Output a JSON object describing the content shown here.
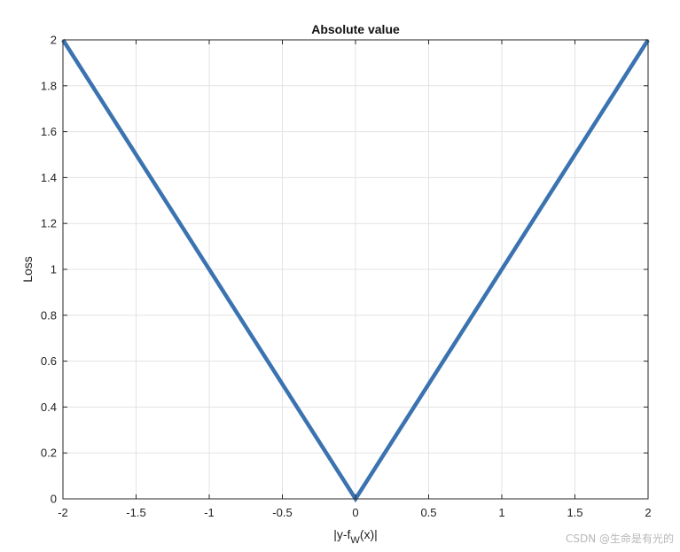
{
  "chart_data": {
    "type": "line",
    "title": "Absolute value",
    "xlabel": "|y-f_W(x)|",
    "xlabel_main": "|y-f",
    "xlabel_sub": "W",
    "xlabel_tail": "(x)|",
    "ylabel": "Loss",
    "xlim": [
      -2,
      2
    ],
    "ylim": [
      0,
      2
    ],
    "xticks": [
      "-2",
      "-1.5",
      "-1",
      "-0.5",
      "0",
      "0.5",
      "1",
      "1.5",
      "2"
    ],
    "yticks": [
      "0",
      "0.2",
      "0.4",
      "0.6",
      "0.8",
      "1",
      "1.2",
      "1.4",
      "1.6",
      "1.8",
      "2"
    ],
    "grid": true,
    "series": [
      {
        "x": [
          -2,
          0,
          2
        ],
        "y": [
          2,
          0,
          2
        ],
        "color": "#3a73b0"
      }
    ]
  },
  "watermark": "CSDN @生命是有光的"
}
